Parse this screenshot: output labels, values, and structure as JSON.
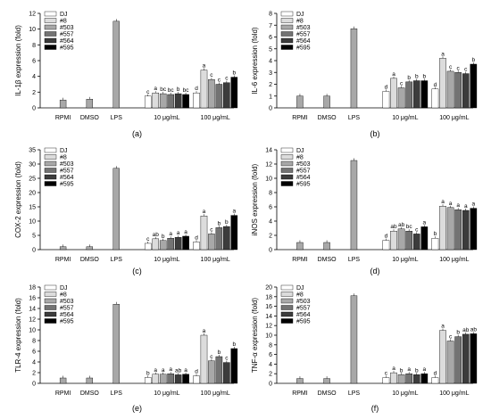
{
  "colors": {
    "DJ": "#ffffff",
    "#8": "#dcdcdc",
    "#503": "#a8a8a8",
    "#557": "#737373",
    "#564": "#3c3c3c",
    "#595": "#000000",
    "single": "#a8a8a8"
  },
  "chart_data": [
    {
      "type": "bar",
      "panel_label": "(a)",
      "ylabel": "IL-1β expression (fold)",
      "ylim": [
        0,
        12
      ],
      "yticks": [
        0,
        2,
        4,
        6,
        8,
        10,
        12
      ],
      "legend": [
        "DJ",
        "#8",
        "#503",
        "#557",
        "#564",
        "#595"
      ],
      "legend_position": "top-left",
      "controls": {
        "categories": [
          "RPMI",
          "DMSO",
          "LPS"
        ],
        "values": [
          1.0,
          1.1,
          11.0
        ]
      },
      "groups": [
        {
          "label": "10 μg/mL",
          "values": [
            1.5,
            1.9,
            1.8,
            1.7,
            1.8,
            1.7
          ],
          "letters": [
            "c",
            "a",
            "bc",
            "bc",
            "b",
            "bc"
          ]
        },
        {
          "label": "100 μg/mL",
          "values": [
            1.9,
            4.8,
            3.6,
            3.0,
            3.2,
            3.9
          ],
          "letters": [
            "d",
            "a",
            "c",
            "c",
            "c",
            "b"
          ]
        }
      ]
    },
    {
      "type": "bar",
      "panel_label": "(b)",
      "ylabel": "IL-6 expression (fold)",
      "ylim": [
        0,
        8
      ],
      "yticks": [
        0,
        1,
        2,
        3,
        4,
        5,
        6,
        7,
        8
      ],
      "legend": [
        "DJ",
        "#8",
        "#503",
        "#557",
        "#564",
        "#595"
      ],
      "legend_position": "top-left",
      "controls": {
        "categories": [
          "RPMI",
          "DMSO",
          "LPS"
        ],
        "values": [
          1.0,
          1.0,
          6.7
        ]
      },
      "groups": [
        {
          "label": "10 μg/mL",
          "values": [
            1.4,
            2.5,
            1.7,
            2.2,
            2.3,
            2.3
          ],
          "letters": [
            "d",
            "a",
            "c",
            "b",
            "b",
            "b"
          ]
        },
        {
          "label": "100 μg/mL",
          "values": [
            1.6,
            4.2,
            3.1,
            3.0,
            2.9,
            3.7
          ],
          "letters": [
            "d",
            "a",
            "c",
            "c",
            "c",
            "b"
          ]
        }
      ]
    },
    {
      "type": "bar",
      "panel_label": "(c)",
      "ylabel": "COX-2 expression (fold)",
      "ylim": [
        0,
        35
      ],
      "yticks": [
        0,
        5,
        10,
        15,
        20,
        25,
        30,
        35
      ],
      "legend": [
        "DJ",
        "#8",
        "#503",
        "#557",
        "#564",
        "#595"
      ],
      "legend_position": "top-left",
      "controls": {
        "categories": [
          "RPMI",
          "DMSO",
          "LPS"
        ],
        "values": [
          1.0,
          1.0,
          28.5
        ]
      },
      "groups": [
        {
          "label": "10 μg/mL",
          "values": [
            2.2,
            3.8,
            3.2,
            4.0,
            4.3,
            4.7
          ],
          "letters": [
            "c",
            "ab",
            "b",
            "a",
            "a",
            "a"
          ]
        },
        {
          "label": "100 μg/mL",
          "values": [
            2.7,
            11.8,
            5.5,
            7.7,
            8.1,
            12.0
          ],
          "letters": [
            "d",
            "a",
            "c",
            "b",
            "b",
            "a"
          ]
        }
      ]
    },
    {
      "type": "bar",
      "panel_label": "(d)",
      "ylabel": "iNOS expression (fold)",
      "ylim": [
        0,
        14
      ],
      "yticks": [
        0,
        2,
        4,
        6,
        8,
        10,
        12,
        14
      ],
      "legend": [
        "DJ",
        "#8",
        "#503",
        "#557",
        "#564",
        "#595"
      ],
      "legend_position": "top-left",
      "controls": {
        "categories": [
          "RPMI",
          "DMSO",
          "LPS"
        ],
        "values": [
          1.0,
          1.0,
          12.5
        ]
      },
      "groups": [
        {
          "label": "10 μg/mL",
          "values": [
            1.3,
            2.6,
            2.9,
            2.6,
            2.2,
            3.2
          ],
          "letters": [
            "d",
            "ab",
            "ab",
            "bc",
            "c",
            "a"
          ]
        },
        {
          "label": "100 μg/mL",
          "values": [
            1.6,
            6.1,
            5.9,
            5.6,
            5.5,
            5.8
          ],
          "letters": [
            "b",
            "a",
            "a",
            "a",
            "a",
            "a"
          ]
        }
      ]
    },
    {
      "type": "bar",
      "panel_label": "(e)",
      "ylabel": "TLR-4 expression (fold)",
      "ylim": [
        0,
        18
      ],
      "yticks": [
        0,
        2,
        4,
        6,
        8,
        10,
        12,
        14,
        16,
        18
      ],
      "legend": [
        "DJ",
        "#8",
        "#503",
        "#557",
        "#564",
        "#595"
      ],
      "legend_position": "top-left",
      "controls": {
        "categories": [
          "RPMI",
          "DMSO",
          "LPS"
        ],
        "values": [
          1.0,
          1.0,
          14.8
        ]
      },
      "groups": [
        {
          "label": "10 μg/mL",
          "values": [
            1.1,
            1.7,
            1.7,
            1.8,
            1.6,
            1.7
          ],
          "letters": [
            "b",
            "a",
            "a",
            "a",
            "ab",
            "a"
          ]
        },
        {
          "label": "100 μg/mL",
          "values": [
            1.4,
            9.0,
            4.2,
            5.0,
            3.9,
            6.5
          ],
          "letters": [
            "d",
            "a",
            "c",
            "b",
            "c",
            "b"
          ]
        }
      ]
    },
    {
      "type": "bar",
      "panel_label": "(f)",
      "ylabel": "TNF-α expression (fold)",
      "ylim": [
        0,
        20
      ],
      "yticks": [
        0,
        2,
        4,
        6,
        8,
        10,
        12,
        14,
        16,
        18,
        20
      ],
      "legend": [
        "DJ",
        "#8",
        "#503",
        "#557",
        "#564",
        "#595"
      ],
      "legend_position": "top-left",
      "controls": {
        "categories": [
          "RPMI",
          "DMSO",
          "LPS"
        ],
        "values": [
          1.0,
          1.0,
          18.2
        ]
      },
      "groups": [
        {
          "label": "10 μg/mL",
          "values": [
            1.2,
            2.2,
            1.8,
            2.0,
            1.8,
            2.0
          ],
          "letters": [
            "c",
            "a",
            "b",
            "a",
            "b",
            "a"
          ]
        },
        {
          "label": "100 μg/mL",
          "values": [
            1.2,
            11.0,
            8.8,
            9.7,
            10.2,
            10.3
          ],
          "letters": [
            "d",
            "a",
            "c",
            "b",
            "ab",
            "ab"
          ]
        }
      ]
    }
  ]
}
